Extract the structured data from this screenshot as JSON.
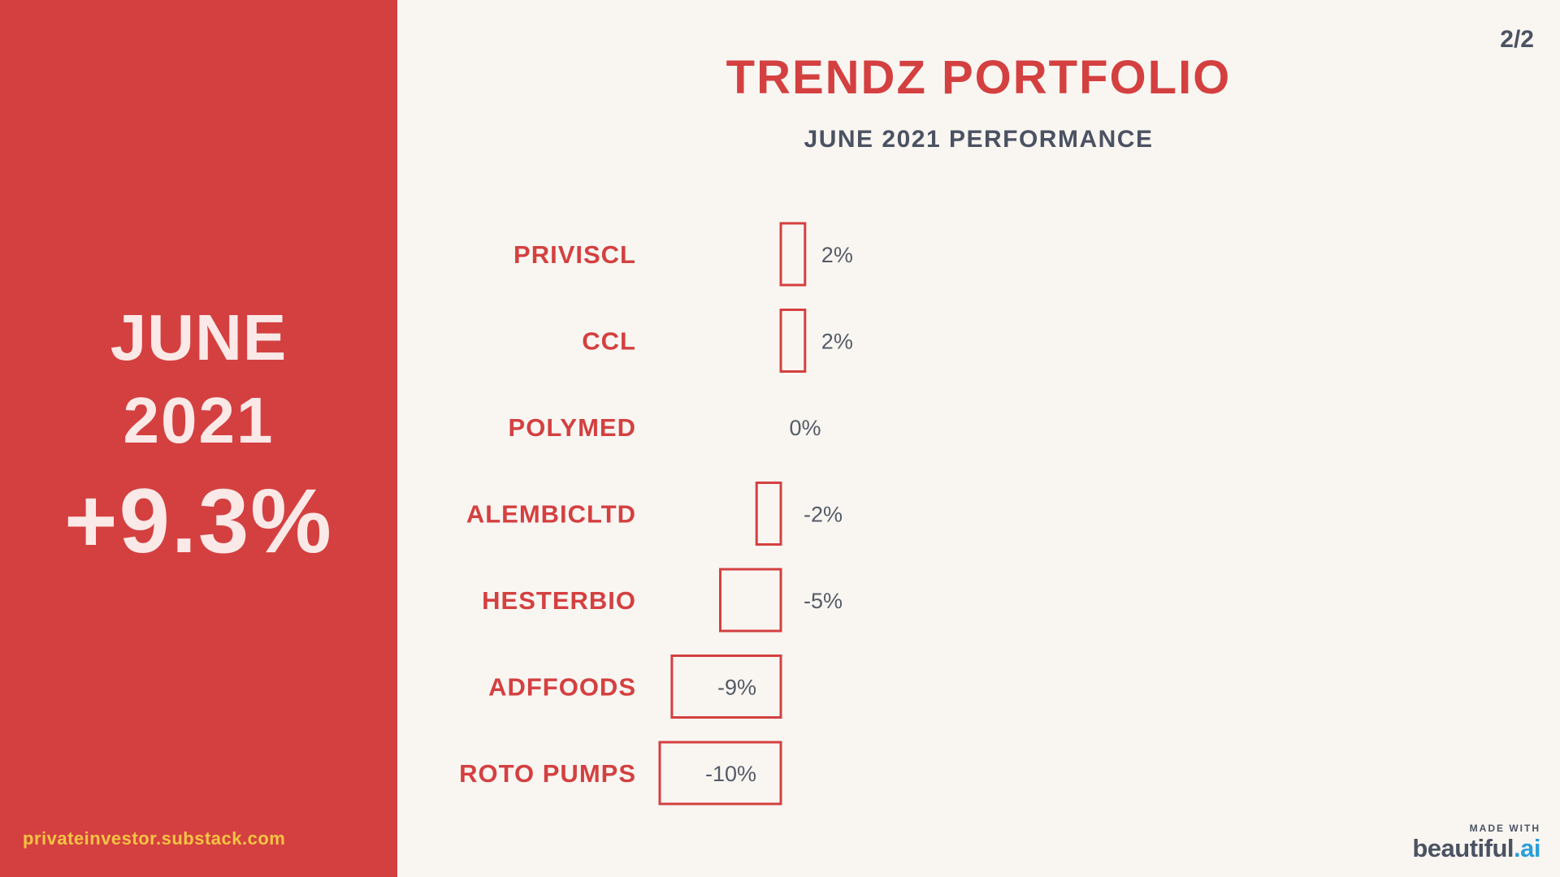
{
  "slide": {
    "month": "JUNE",
    "year": "2021",
    "total_return": "+9.3%",
    "site": "privateinvestor.substack.com",
    "page_number": "2/2",
    "title": "TRENDZ PORTFOLIO",
    "subtitle": "JUNE 2021 PERFORMANCE"
  },
  "branding": {
    "made_with": "MADE WITH",
    "brand_main": "beautiful",
    "brand_dot": ".ai"
  },
  "colors": {
    "accent": "#d44040",
    "panel_text": "#fbe9e8",
    "site_text": "#f6c443",
    "dark_text": "#4b5262",
    "background": "#f9f6f2"
  },
  "chart_data": {
    "type": "bar",
    "orientation": "horizontal",
    "title": "",
    "xlabel": "",
    "ylabel": "",
    "categories": [
      "PRIVISCL",
      "CCL",
      "POLYMED",
      "ALEMBICLTD",
      "HESTERBIO",
      "ADFFOODS",
      "ROTO PUMPS"
    ],
    "values": [
      2,
      2,
      0,
      -2,
      -5,
      -9,
      -10
    ],
    "value_labels": [
      "2%",
      "2%",
      "0%",
      "-2%",
      "-5%",
      "-9%",
      "-10%"
    ],
    "xlim": [
      -10,
      2
    ],
    "grid": false,
    "legend": "none"
  }
}
